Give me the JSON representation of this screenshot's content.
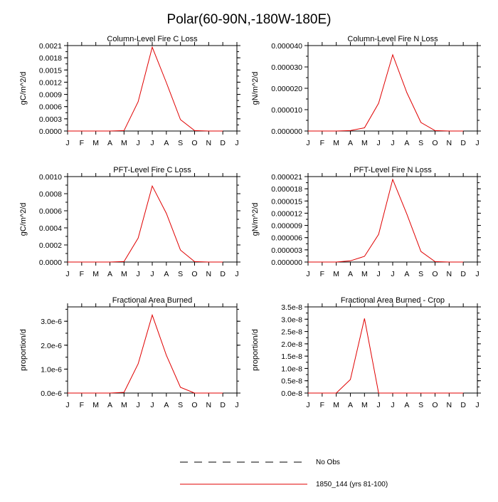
{
  "title": "Polar(60-90N,-180W-180E)",
  "months": [
    "J",
    "F",
    "M",
    "A",
    "M",
    "J",
    "J",
    "A",
    "S",
    "O",
    "N",
    "D",
    "J"
  ],
  "legend": {
    "items": [
      {
        "label": "No Obs",
        "style": "dashed",
        "color": "#000000"
      },
      {
        "label": "1850_144 (yrs 81-100)",
        "style": "solid",
        "color": "#e00000"
      }
    ]
  },
  "chart_data": [
    {
      "type": "line",
      "title": "Column-Level Fire C Loss",
      "ylabel": "gC/m^2/d",
      "ylim": [
        0,
        0.0021
      ],
      "yticks": [
        0,
        0.0003,
        0.0006,
        0.0009,
        0.0012,
        0.0015,
        0.0018,
        0.0021
      ],
      "ytick_labels": [
        "0.0000",
        "0.0003",
        "0.0006",
        "0.0009",
        "0.0012",
        "0.0015",
        "0.0018",
        "0.0021"
      ],
      "series": [
        {
          "name": "1850_144 (yrs 81-100)",
          "color": "#e00000",
          "values": [
            0,
            0,
            0,
            0,
            1e-05,
            0.00072,
            0.00206,
            0.00119,
            0.00028,
            1e-05,
            0,
            0
          ]
        }
      ]
    },
    {
      "type": "line",
      "title": "Column-Level Fire N Loss",
      "ylabel": "gN/m^2/d",
      "ylim": [
        0,
        4e-05
      ],
      "yticks": [
        0,
        1e-05,
        2e-05,
        3e-05,
        4e-05
      ],
      "ytick_labels": [
        "0.000000",
        "0.000010",
        "0.000020",
        "0.000030",
        "0.000040"
      ],
      "series": [
        {
          "name": "1850_144 (yrs 81-100)",
          "color": "#e00000",
          "values": [
            0,
            0,
            0,
            2e-07,
            1.5e-06,
            1.3e-05,
            3.57e-05,
            1.8e-05,
            4e-06,
            2e-07,
            0,
            0
          ]
        }
      ]
    },
    {
      "type": "line",
      "title": "PFT-Level Fire C Loss",
      "ylabel": "gC/m^2/d",
      "ylim": [
        0,
        0.001
      ],
      "yticks": [
        0,
        0.0002,
        0.0004,
        0.0006,
        0.0008,
        0.001
      ],
      "ytick_labels": [
        "0.0000",
        "0.0002",
        "0.0004",
        "0.0006",
        "0.0008",
        "0.0010"
      ],
      "series": [
        {
          "name": "1850_144 (yrs 81-100)",
          "color": "#e00000",
          "values": [
            0,
            0,
            0,
            0,
            6e-06,
            0.00028,
            0.00089,
            0.00057,
            0.00014,
            5e-06,
            0,
            0
          ]
        }
      ]
    },
    {
      "type": "line",
      "title": "PFT-Level Fire N Loss",
      "ylabel": "gN/m^2/d",
      "ylim": [
        0,
        2.1e-05
      ],
      "yticks": [
        0,
        3e-06,
        6e-06,
        9e-06,
        1.2e-05,
        1.5e-05,
        1.8e-05,
        2.1e-05
      ],
      "ytick_labels": [
        "0.000000",
        "0.000003",
        "0.000006",
        "0.000009",
        "0.000012",
        "0.000015",
        "0.000018",
        "0.000021"
      ],
      "series": [
        {
          "name": "1850_144 (yrs 81-100)",
          "color": "#e00000",
          "values": [
            0,
            0,
            0,
            3e-07,
            1.4e-06,
            6.8e-06,
            2.03e-05,
            1.18e-05,
            2.6e-06,
            1e-07,
            0,
            0
          ]
        }
      ]
    },
    {
      "type": "line",
      "title": "Fractional Area Burned",
      "ylabel": "proportion/d",
      "ylim": [
        0,
        3.6e-06
      ],
      "yticks": [
        0,
        1e-06,
        2e-06,
        3e-06
      ],
      "ytick_labels": [
        "0.0e-6",
        "1.0e-6",
        "2.0e-6",
        "3.0e-6"
      ],
      "series": [
        {
          "name": "1850_144 (yrs 81-100)",
          "color": "#e00000",
          "values": [
            0,
            0,
            0,
            0,
            3e-08,
            1.22e-06,
            3.26e-06,
            1.58e-06,
            2.4e-07,
            0,
            0,
            0
          ]
        }
      ]
    },
    {
      "type": "line",
      "title": "Fractional Area Burned - Crop",
      "ylabel": "proportion/d",
      "ylim": [
        0,
        3.5e-08
      ],
      "yticks": [
        0,
        5e-09,
        1e-08,
        1.5e-08,
        2e-08,
        2.5e-08,
        3e-08,
        3.5e-08
      ],
      "ytick_labels": [
        "0.0e-8",
        "0.5e-8",
        "1.0e-8",
        "1.5e-8",
        "2.0e-8",
        "2.5e-8",
        "3.0e-8",
        "3.5e-8"
      ],
      "series": [
        {
          "name": "1850_144 (yrs 81-100)",
          "color": "#e00000",
          "values": [
            0,
            0,
            0,
            5.5e-09,
            3.03e-08,
            0,
            0,
            0,
            0,
            0,
            0,
            0
          ]
        }
      ]
    }
  ]
}
